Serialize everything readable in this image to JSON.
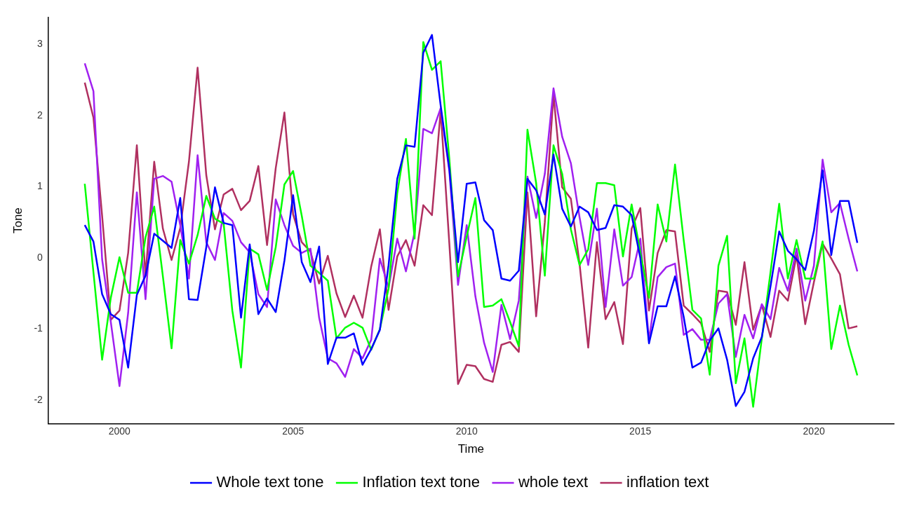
{
  "chart_data": {
    "type": "line",
    "xlabel": "Time",
    "ylabel": "Tone",
    "legend": "bottom",
    "grid": false,
    "marker": "none",
    "line_style": "solid",
    "xlim": [
      1997.95,
      2022.3
    ],
    "xticks": [
      2000,
      2005,
      2010,
      2015,
      2020
    ],
    "ylim": [
      -2.33,
      3.38
    ],
    "yticks": [
      -2,
      -1,
      0,
      1,
      2,
      3
    ],
    "x": [
      1999,
      1999.25,
      1999.5,
      1999.75,
      2000,
      2000.25,
      2000.5,
      2000.75,
      2001,
      2001.25,
      2001.5,
      2001.75,
      2002,
      2002.25,
      2002.5,
      2002.75,
      2003,
      2003.25,
      2003.5,
      2003.75,
      2004,
      2004.25,
      2004.5,
      2004.75,
      2005,
      2005.25,
      2005.5,
      2005.75,
      2006,
      2006.25,
      2006.5,
      2006.75,
      2007,
      2007.25,
      2007.5,
      2007.75,
      2008,
      2008.25,
      2008.5,
      2008.75,
      2009,
      2009.25,
      2009.5,
      2009.75,
      2010,
      2010.25,
      2010.5,
      2010.75,
      2011,
      2011.25,
      2011.5,
      2011.75,
      2012,
      2012.25,
      2012.5,
      2012.75,
      2013,
      2013.25,
      2013.5,
      2013.75,
      2014,
      2014.25,
      2014.5,
      2014.75,
      2015,
      2015.25,
      2015.5,
      2015.75,
      2016,
      2016.25,
      2016.5,
      2016.75,
      2017,
      2017.25,
      2017.5,
      2017.75,
      2018,
      2018.25,
      2018.5,
      2018.75,
      2019,
      2019.25,
      2019.5,
      2019.75,
      2020,
      2020.25,
      2020.5,
      2020.75,
      2021,
      2021.25
    ],
    "series": [
      {
        "name": "Whole text tone",
        "color": "#0000ff",
        "values": [
          0.46,
          0.23,
          -0.51,
          -0.79,
          -0.87,
          -1.54,
          -0.52,
          -0.25,
          0.34,
          0.24,
          0.14,
          0.84,
          -0.58,
          -0.59,
          0.15,
          0.99,
          0.49,
          0.46,
          -0.84,
          0.19,
          -0.79,
          -0.57,
          -0.76,
          -0.04,
          0.88,
          -0.06,
          -0.34,
          0.16,
          -1.49,
          -1.12,
          -1.12,
          -1.06,
          -1.5,
          -1.28,
          -1.01,
          -0.1,
          1.11,
          1.58,
          1.56,
          2.88,
          3.13,
          2.14,
          1.25,
          -0.06,
          1.04,
          1.06,
          0.53,
          0.39,
          -0.29,
          -0.32,
          -0.18,
          1.11,
          0.95,
          0.61,
          1.45,
          0.69,
          0.44,
          0.72,
          0.64,
          0.39,
          0.42,
          0.74,
          0.72,
          0.6,
          0.0,
          -1.2,
          -0.68,
          -0.68,
          -0.26,
          -0.83,
          -1.54,
          -1.47,
          -1.16,
          -0.99,
          -1.43,
          -2.08,
          -1.88,
          -1.41,
          -1.11,
          -0.4,
          0.37,
          0.1,
          -0.02,
          -0.17,
          0.38,
          1.23,
          0.04,
          0.8,
          0.8,
          0.21
        ]
      },
      {
        "name": "Inflation text tone",
        "color": "#00ff00",
        "values": [
          1.04,
          -0.2,
          -1.43,
          -0.56,
          0.01,
          -0.49,
          -0.49,
          0.29,
          0.72,
          -0.26,
          -1.27,
          0.25,
          -0.08,
          0.32,
          0.87,
          0.55,
          0.48,
          -0.74,
          -1.54,
          0.13,
          0.05,
          -0.45,
          0.15,
          1.03,
          1.22,
          0.59,
          -0.11,
          -0.21,
          -0.32,
          -1.13,
          -0.98,
          -0.91,
          -0.98,
          -1.29,
          -1.0,
          -0.43,
          0.91,
          1.67,
          0.27,
          3.03,
          2.64,
          2.76,
          1.39,
          -0.26,
          0.3,
          0.84,
          -0.69,
          -0.67,
          -0.58,
          -0.9,
          -1.24,
          1.8,
          1.05,
          -0.25,
          1.58,
          1.18,
          0.4,
          -0.1,
          0.12,
          1.05,
          1.05,
          1.02,
          0.02,
          0.75,
          0.08,
          -0.56,
          0.75,
          0.23,
          1.31,
          0.25,
          -0.73,
          -0.85,
          -1.64,
          -0.11,
          0.31,
          -1.76,
          -1.13,
          -2.09,
          -1.13,
          -0.2,
          0.76,
          -0.29,
          0.25,
          -0.29,
          -0.29,
          0.23,
          -1.28,
          -0.67,
          -1.22,
          -1.65
        ]
      },
      {
        "name": "whole text",
        "color": "#a020f0",
        "values": [
          2.73,
          2.34,
          -0.02,
          -0.9,
          -1.8,
          -0.77,
          0.92,
          -0.58,
          1.11,
          1.15,
          1.07,
          0.46,
          -0.29,
          1.44,
          0.22,
          -0.03,
          0.63,
          0.52,
          0.22,
          0.08,
          -0.51,
          -0.69,
          0.82,
          0.46,
          0.17,
          0.07,
          0.13,
          -0.84,
          -1.41,
          -1.48,
          -1.67,
          -1.28,
          -1.41,
          -1.15,
          -0.01,
          -0.42,
          0.27,
          -0.19,
          0.36,
          1.81,
          1.75,
          2.1,
          1.22,
          -0.38,
          0.46,
          -0.54,
          -1.19,
          -1.6,
          -0.66,
          -1.14,
          -0.6,
          1.14,
          0.56,
          1.18,
          2.38,
          1.7,
          1.33,
          0.57,
          -0.1,
          0.69,
          -0.69,
          0.4,
          -0.39,
          -0.27,
          0.27,
          -1.16,
          -0.27,
          -0.13,
          -0.08,
          -1.08,
          -1.0,
          -1.15,
          -1.15,
          -0.64,
          -0.51,
          -1.39,
          -0.8,
          -1.13,
          -0.65,
          -0.86,
          -0.14,
          -0.46,
          0.13,
          -0.6,
          -0.11,
          1.38,
          0.64,
          0.77,
          0.27,
          -0.19
        ]
      },
      {
        "name": "inflation text",
        "color": "#b03060",
        "values": [
          2.46,
          1.97,
          0.59,
          -0.87,
          -0.74,
          0.07,
          1.58,
          -0.25,
          1.35,
          0.41,
          -0.03,
          0.42,
          1.35,
          2.67,
          1.16,
          0.4,
          0.89,
          0.97,
          0.67,
          0.8,
          1.29,
          0.18,
          1.26,
          2.04,
          0.61,
          0.22,
          0.09,
          -0.36,
          0.03,
          -0.5,
          -0.83,
          -0.53,
          -0.84,
          -0.12,
          0.4,
          -0.73,
          0.02,
          0.25,
          -0.11,
          0.74,
          0.6,
          2.07,
          0.2,
          -1.77,
          -1.5,
          -1.52,
          -1.7,
          -1.74,
          -1.22,
          -1.18,
          -1.32,
          0.92,
          -0.82,
          0.5,
          2.29,
          0.99,
          0.83,
          -0.08,
          -1.26,
          0.22,
          -0.86,
          -0.62,
          -1.21,
          0.41,
          0.7,
          -0.74,
          0.07,
          0.39,
          0.37,
          -0.67,
          -0.79,
          -0.92,
          -1.32,
          -0.46,
          -0.48,
          -0.94,
          -0.06,
          -1.01,
          -0.66,
          -1.11,
          -0.46,
          -0.6,
          0.04,
          -0.93,
          -0.34,
          0.2,
          -0.01,
          -0.23,
          -0.99,
          -0.96
        ]
      }
    ]
  }
}
